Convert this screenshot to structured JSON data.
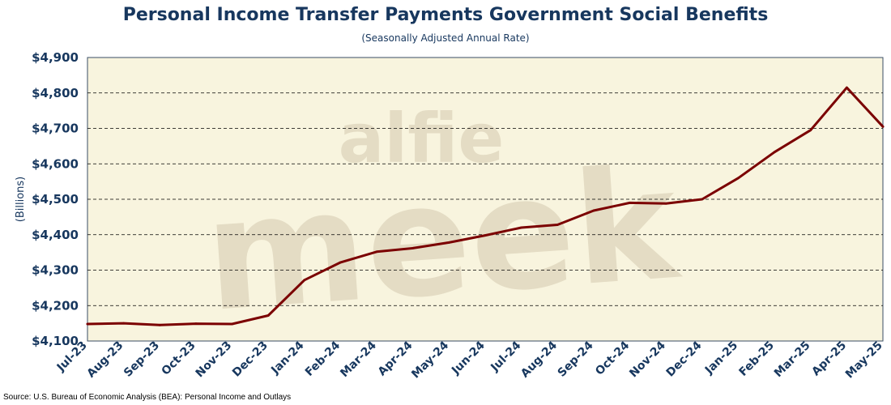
{
  "chart_data": {
    "type": "line",
    "title": "Personal Income Transfer Payments Government Social Benefits",
    "subtitle": "(Seasonally Adjusted Annual Rate)",
    "ylabel": "(Billions)",
    "xlabel": "",
    "ylim": [
      4100,
      4900
    ],
    "y_ticks": [
      4100,
      4200,
      4300,
      4400,
      4500,
      4600,
      4700,
      4800,
      4900
    ],
    "y_tick_labels": [
      "$4,100",
      "$4,200",
      "$4,300",
      "$4,400",
      "$4,500",
      "$4,600",
      "$4,700",
      "$4,800",
      "$4,900"
    ],
    "categories": [
      "Jul-23",
      "Aug-23",
      "Sep-23",
      "Oct-23",
      "Nov-23",
      "Dec-23",
      "Jan-24",
      "Feb-24",
      "Mar-24",
      "Apr-24",
      "May-24",
      "Jun-24",
      "Jul-24",
      "Aug-24",
      "Sep-24",
      "Oct-24",
      "Nov-24",
      "Dec-24",
      "Jan-25",
      "Feb-25",
      "Mar-25",
      "Apr-25",
      "May-25"
    ],
    "series": [
      {
        "values": [
          4148,
          4150,
          4145,
          4149,
          4148,
          4172,
          4272,
          4322,
          4352,
          4362,
          4378,
          4398,
          4420,
          4428,
          4468,
          4490,
          4488,
          4500,
          4560,
          4633,
          4695,
          4815,
          4705
        ],
        "color": "#7b0000"
      }
    ],
    "grid": "horizontal dashed",
    "plot_background": "#f8f4de",
    "watermark": [
      "alfie",
      "meek"
    ],
    "source": "Source: U.S. Bureau of Economic Analysis (BEA): Personal Income and Outlays"
  }
}
